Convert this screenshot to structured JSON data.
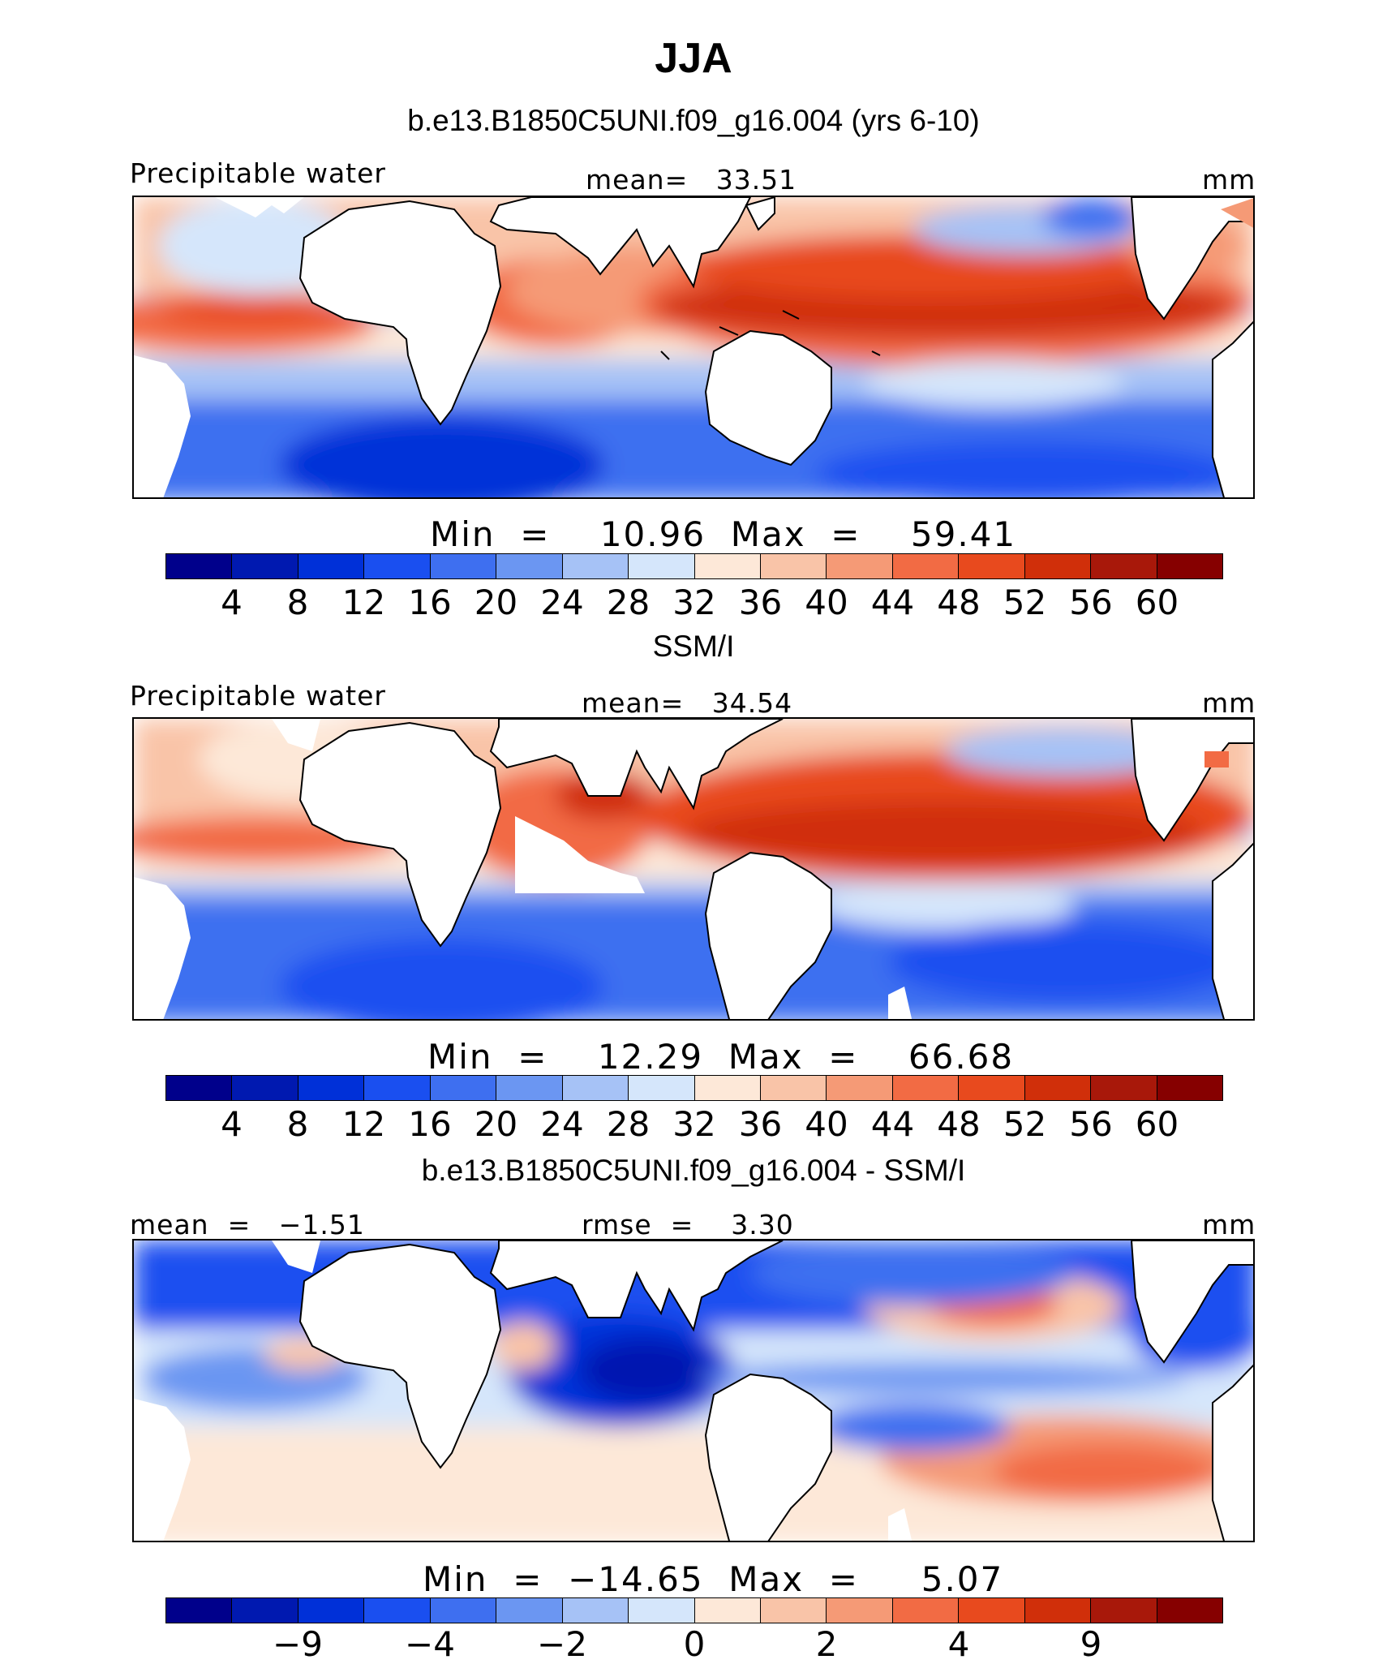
{
  "figure": {
    "title": "JJA"
  },
  "panels": [
    {
      "subtitle": "b.e13.B1850C5UNI.f09_g16.004 (yrs 6-10)",
      "left_label": "Precipitable water",
      "center_label": "mean=   33.51",
      "right_label": "mm",
      "minmax": "Min  =    10.96  Max  =    59.41",
      "colorbar_ticks": [
        "4",
        "8",
        "12",
        "16",
        "20",
        "24",
        "28",
        "32",
        "36",
        "40",
        "44",
        "48",
        "52",
        "56",
        "60"
      ]
    },
    {
      "subtitle": "SSM/I",
      "left_label": "Precipitable water",
      "center_label": "mean=   34.54",
      "right_label": "mm",
      "minmax": "Min  =    12.29  Max  =    66.68",
      "colorbar_ticks": [
        "4",
        "8",
        "12",
        "16",
        "20",
        "24",
        "28",
        "32",
        "36",
        "40",
        "44",
        "48",
        "52",
        "56",
        "60"
      ]
    },
    {
      "subtitle": "b.e13.B1850C5UNI.f09_g16.004 - SSM/I",
      "left_label": "mean  =   −1.51",
      "center_label": "rmse  =    3.30",
      "right_label": "mm",
      "minmax": "Min  =  −14.65  Max  =     5.07",
      "colorbar_ticks": [
        "−9",
        "−4",
        "−2",
        "0",
        "2",
        "4",
        "9"
      ]
    }
  ],
  "colors": {
    "full_scale": [
      "#00008b",
      "#0019b0",
      "#0030d8",
      "#1a4ff0",
      "#3e6ff0",
      "#6b96f2",
      "#a6c2f6",
      "#d5e6fb",
      "#fde8d8",
      "#f9c4a8",
      "#f59a76",
      "#f26b44",
      "#e84a1e",
      "#d02f0a",
      "#a8180a",
      "#860000"
    ],
    "diff_scale": [
      "#00008b",
      "#0019b0",
      "#0030d8",
      "#1a4ff0",
      "#3e6ff0",
      "#6b96f2",
      "#a6c2f6",
      "#d5e6fb",
      "#fde8d8",
      "#f9c4a8",
      "#f59a76",
      "#f26b44",
      "#e84a1e",
      "#d02f0a",
      "#a8180a",
      "#860000"
    ]
  },
  "map": {
    "projection": "cylindrical equidistant",
    "region": "tropics, Atlantic to eastern Pacific",
    "field": "Precipitable water"
  }
}
